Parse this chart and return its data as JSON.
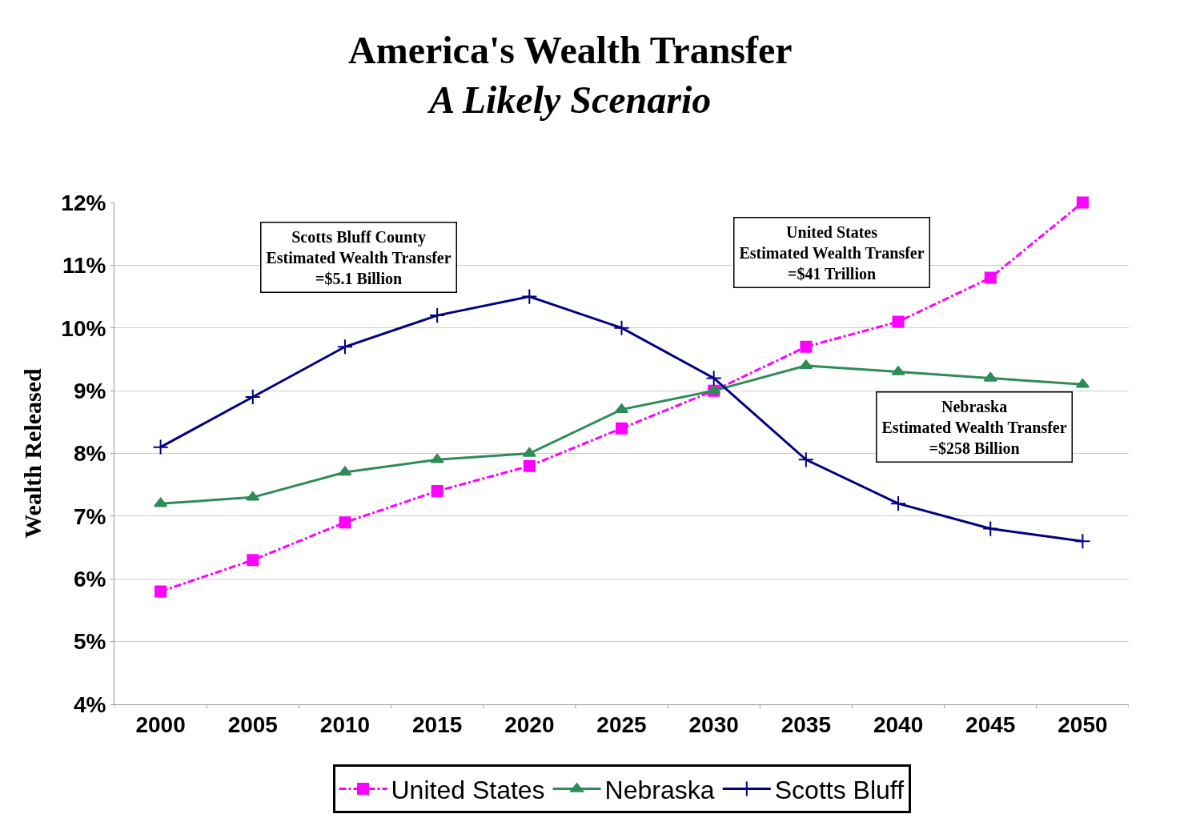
{
  "chart_data": {
    "type": "line",
    "title": "America's Wealth Transfer",
    "subtitle": "A Likely Scenario",
    "ylabel": "Wealth Released",
    "categories": [
      "2000",
      "2005",
      "2010",
      "2015",
      "2020",
      "2025",
      "2030",
      "2035",
      "2040",
      "2045",
      "2050"
    ],
    "series": [
      {
        "name": "United States",
        "color": "#ff00ff",
        "marker": "square",
        "line_style": "dashed",
        "values": [
          5.8,
          6.3,
          6.9,
          7.4,
          7.8,
          8.4,
          9.0,
          9.7,
          10.1,
          10.8,
          12.0
        ]
      },
      {
        "name": "Nebraska",
        "color": "#2e8b57",
        "marker": "triangle",
        "line_style": "solid",
        "values": [
          7.2,
          7.3,
          7.7,
          7.9,
          8.0,
          8.7,
          9.0,
          9.4,
          9.3,
          9.2,
          9.1
        ]
      },
      {
        "name": "Scotts Bluff",
        "color": "#000080",
        "marker": "cross",
        "line_style": "solid",
        "values": [
          8.1,
          8.9,
          9.7,
          10.2,
          10.5,
          10.0,
          9.2,
          7.9,
          7.2,
          6.8,
          6.6
        ]
      }
    ],
    "ylim": [
      4,
      12
    ],
    "yticks": [
      {
        "value": 4,
        "label": "4%"
      },
      {
        "value": 5,
        "label": "5%"
      },
      {
        "value": 6,
        "label": "6%"
      },
      {
        "value": 7,
        "label": "7%"
      },
      {
        "value": 8,
        "label": "8%"
      },
      {
        "value": 9,
        "label": "9%"
      },
      {
        "value": 10,
        "label": "10%"
      },
      {
        "value": 11,
        "label": "11%"
      },
      {
        "value": 12,
        "label": "12%"
      }
    ],
    "grid": "y",
    "legend": "bottom",
    "annotations": [
      "Scotts Bluff County\nEstimated Wealth Transfer\n=$5.1 Billion",
      "United States\nEstimated Wealth Transfer\n=$41 Trillion",
      "Nebraska\nEstimated Wealth Transfer\n=$258 Billion"
    ]
  }
}
